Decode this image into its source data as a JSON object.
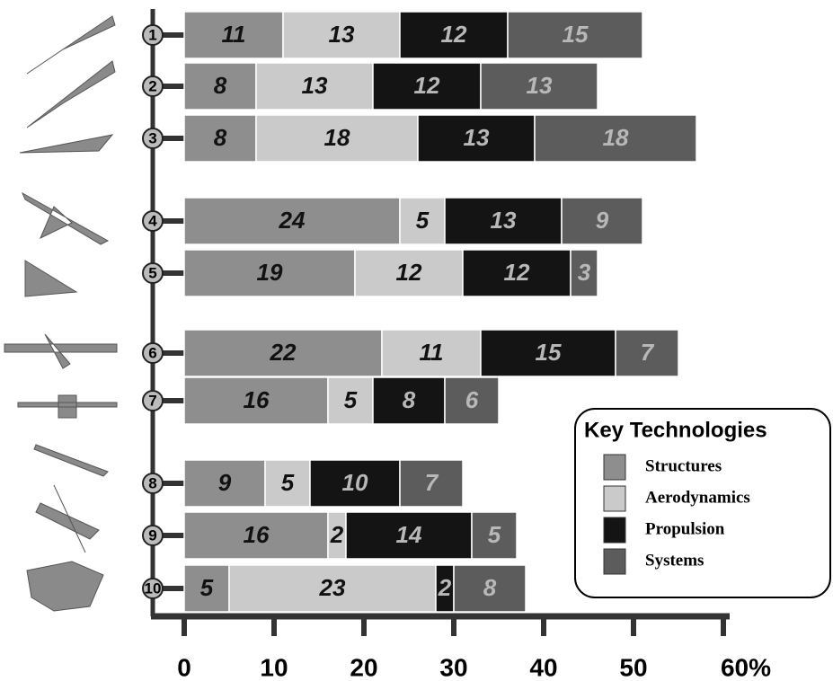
{
  "chart_data": {
    "type": "stacked-bar",
    "orientation": "horizontal",
    "categories": [
      "1",
      "2",
      "3",
      "4",
      "5",
      "6",
      "7",
      "8",
      "9",
      "10"
    ],
    "series": [
      {
        "name": "Structures",
        "color": "#8e8e8e",
        "values": [
          11,
          8,
          8,
          24,
          19,
          22,
          16,
          9,
          16,
          5
        ]
      },
      {
        "name": "Aerodynamics",
        "color": "#cacaca",
        "values": [
          13,
          13,
          18,
          5,
          12,
          11,
          5,
          5,
          2,
          23
        ]
      },
      {
        "name": "Propulsion",
        "color": "#141414",
        "values": [
          12,
          12,
          13,
          13,
          12,
          15,
          8,
          10,
          14,
          2
        ]
      },
      {
        "name": "Systems",
        "color": "#5c5c5c",
        "values": [
          15,
          13,
          18,
          9,
          3,
          7,
          6,
          7,
          5,
          8
        ]
      }
    ],
    "xlim": [
      0,
      60
    ],
    "xticks": [
      0,
      10,
      20,
      30,
      40,
      50,
      {
        "value": 60,
        "label": "60%"
      }
    ],
    "legend_title": "Key Technologies",
    "legend_position": "lower right"
  }
}
